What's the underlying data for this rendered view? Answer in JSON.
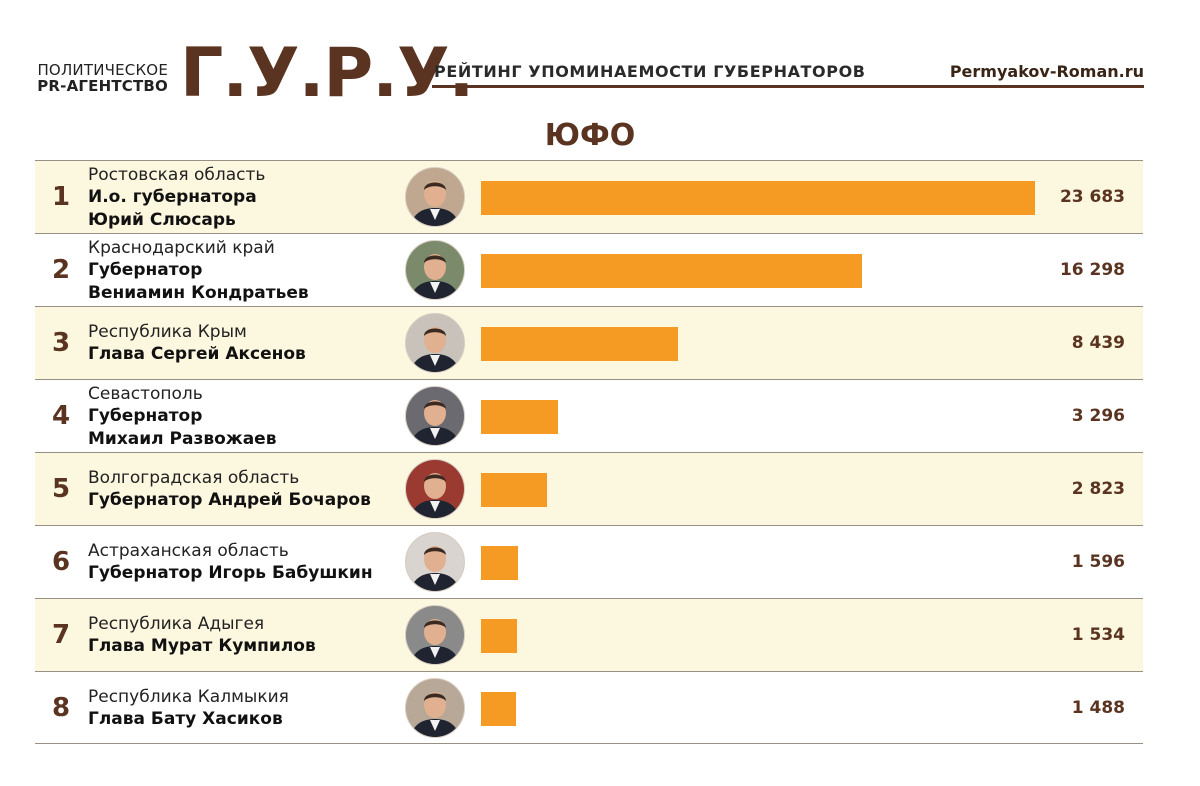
{
  "header": {
    "agency_line1": "ПОЛИТИЧЕСКОЕ",
    "agency_line2": "PR-АГЕНТСТВО",
    "logo": "Г.У.Р.У.",
    "rating_title": "РЕЙТИНГ УПОМИНАЕМОСТИ ГУБЕРНАТОРОВ",
    "site": "Permyakov-Roman.ru"
  },
  "region_title": "ЮФО",
  "colors": {
    "bar": "#f59a23",
    "brand_brown": "#5a3420",
    "row_shade": "#fcf7df"
  },
  "chart_data": {
    "type": "bar",
    "orientation": "horizontal",
    "categories": [
      "Ростовская область",
      "Краснодарский край",
      "Республика Крым",
      "Севастополь",
      "Волгоградская область",
      "Астраханская область",
      "Республика Адыгея",
      "Республика Калмыкия"
    ],
    "values": [
      23683,
      16298,
      8439,
      3296,
      2823,
      1596,
      1534,
      1488
    ],
    "title": "ЮФО"
  },
  "rows": [
    {
      "rank": "1",
      "region": "Ростовская область",
      "name": "И.о. губернатора\nЮрий Слюсарь",
      "value": 23683,
      "value_label": "23 683",
      "shaded": true,
      "avatar": "portrait-photo"
    },
    {
      "rank": "2",
      "region": "Краснодарский край",
      "name": "Губернатор\nВениамин Кондратьев",
      "value": 16298,
      "value_label": "16 298",
      "shaded": false,
      "avatar": "portrait-photo"
    },
    {
      "rank": "3",
      "region": "Республика Крым",
      "name": "Глава Сергей Аксенов",
      "value": 8439,
      "value_label": "8 439",
      "shaded": true,
      "avatar": "portrait-photo"
    },
    {
      "rank": "4",
      "region": "Севастополь",
      "name": "Губернатор\nМихаил Развожаев",
      "value": 3296,
      "value_label": "3 296",
      "shaded": false,
      "avatar": "portrait-photo"
    },
    {
      "rank": "5",
      "region": "Волгоградская область",
      "name": "Губернатор Андрей Бочаров",
      "value": 2823,
      "value_label": "2 823",
      "shaded": true,
      "avatar": "portrait-photo"
    },
    {
      "rank": "6",
      "region": "Астраханская область",
      "name": "Губернатор Игорь Бабушкин",
      "value": 1596,
      "value_label": "1 596",
      "shaded": false,
      "avatar": "portrait-photo"
    },
    {
      "rank": "7",
      "region": "Республика Адыгея",
      "name": "Глава Мурат Кумпилов",
      "value": 1534,
      "value_label": "1 534",
      "shaded": true,
      "avatar": "portrait-photo"
    },
    {
      "rank": "8",
      "region": "Республика Калмыкия",
      "name": "Глава Бату Хасиков",
      "value": 1488,
      "value_label": "1 488",
      "shaded": false,
      "avatar": "portrait-photo"
    }
  ]
}
